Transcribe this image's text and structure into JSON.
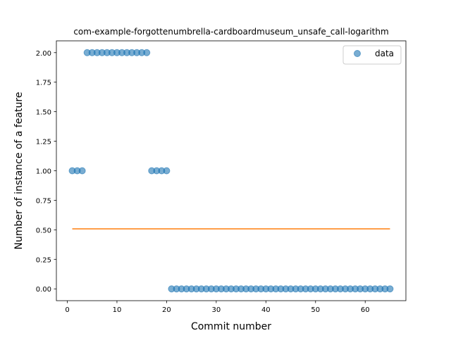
{
  "chart_data": {
    "type": "scatter",
    "title": "com-example-forgottenumbrella-cardboardmuseum_unsafe_call-logarithm",
    "xlabel": "Commit number",
    "ylabel": "Number of instance of a feature",
    "xlim": [
      -2.2,
      68.2
    ],
    "ylim": [
      -0.1,
      2.1
    ],
    "xticks": [
      0,
      10,
      20,
      30,
      40,
      50,
      60
    ],
    "yticks": [
      0.0,
      0.25,
      0.5,
      0.75,
      1.0,
      1.25,
      1.5,
      1.75,
      2.0
    ],
    "ytick_labels": [
      "0.00",
      "0.25",
      "0.50",
      "0.75",
      "1.00",
      "1.25",
      "1.50",
      "1.75",
      "2.00"
    ],
    "grid": false,
    "legend_position": "top-right",
    "series": [
      {
        "name": "data",
        "kind": "scatter",
        "color": "#1f77b4",
        "x": [
          1,
          2,
          3,
          4,
          5,
          6,
          7,
          8,
          9,
          10,
          11,
          12,
          13,
          14,
          15,
          16,
          17,
          18,
          19,
          20,
          21,
          22,
          23,
          24,
          25,
          26,
          27,
          28,
          29,
          30,
          31,
          32,
          33,
          34,
          35,
          36,
          37,
          38,
          39,
          40,
          41,
          42,
          43,
          44,
          45,
          46,
          47,
          48,
          49,
          50,
          51,
          52,
          53,
          54,
          55,
          56,
          57,
          58,
          59,
          60,
          61,
          62,
          63,
          64,
          65
        ],
        "y": [
          1,
          1,
          1,
          2,
          2,
          2,
          2,
          2,
          2,
          2,
          2,
          2,
          2,
          2,
          2,
          2,
          1,
          1,
          1,
          1,
          0,
          0,
          0,
          0,
          0,
          0,
          0,
          0,
          0,
          0,
          0,
          0,
          0,
          0,
          0,
          0,
          0,
          0,
          0,
          0,
          0,
          0,
          0,
          0,
          0,
          0,
          0,
          0,
          0,
          0,
          0,
          0,
          0,
          0,
          0,
          0,
          0,
          0,
          0,
          0,
          0,
          0,
          0,
          0,
          0
        ]
      },
      {
        "kind": "line",
        "color": "#ff7f0e",
        "x": [
          1,
          65
        ],
        "y": [
          0.508,
          0.508
        ]
      }
    ]
  }
}
